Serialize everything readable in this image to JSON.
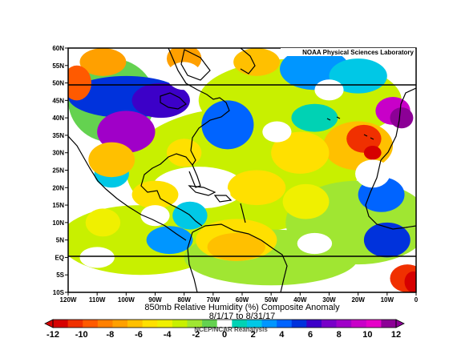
{
  "credit": "NOAA Physical Sciences Laboratory",
  "title": "850mb Relative Humidity (%) Composite Anomaly",
  "subtitle": "8/1/17  to 8/31/17",
  "footer": "NCEP/NCAR Reanalysis",
  "lat_labels": [
    "60N",
    "55N",
    "50N",
    "45N",
    "40N",
    "35N",
    "30N",
    "25N",
    "20N",
    "15N",
    "10N",
    "5N",
    "EQ",
    "5S",
    "10S"
  ],
  "lon_labels": [
    "120W",
    "110W",
    "100W",
    "90W",
    "80W",
    "70W",
    "60W",
    "50W",
    "40W",
    "30W",
    "20W",
    "10W",
    "0"
  ],
  "extent": {
    "lon": [
      -120,
      0
    ],
    "lat": [
      -10,
      60
    ]
  },
  "colorbar": {
    "ticks": [
      "-12",
      "-10",
      "-8",
      "-6",
      "-4",
      "-2",
      "0",
      "2",
      "4",
      "6",
      "8",
      "10",
      "12"
    ],
    "levels": [
      -12,
      -11,
      -10,
      -9,
      -8,
      -7,
      -6,
      -5,
      -4,
      -3,
      -2,
      -1,
      1,
      2,
      3,
      4,
      5,
      6,
      7,
      8,
      9,
      10,
      11,
      12
    ],
    "colors": [
      "#d60000",
      "#f03000",
      "#ff5a00",
      "#ff8000",
      "#ffa000",
      "#ffc000",
      "#ffe000",
      "#f0f000",
      "#c8f000",
      "#a0e632",
      "#64d250",
      "#ffffff",
      "#00d2b4",
      "#00c8e6",
      "#0096ff",
      "#0064ff",
      "#0032dc",
      "#3c00c8",
      "#7800c8",
      "#a000c8",
      "#c800c8",
      "#e600c8",
      "#8c0096"
    ]
  }
}
